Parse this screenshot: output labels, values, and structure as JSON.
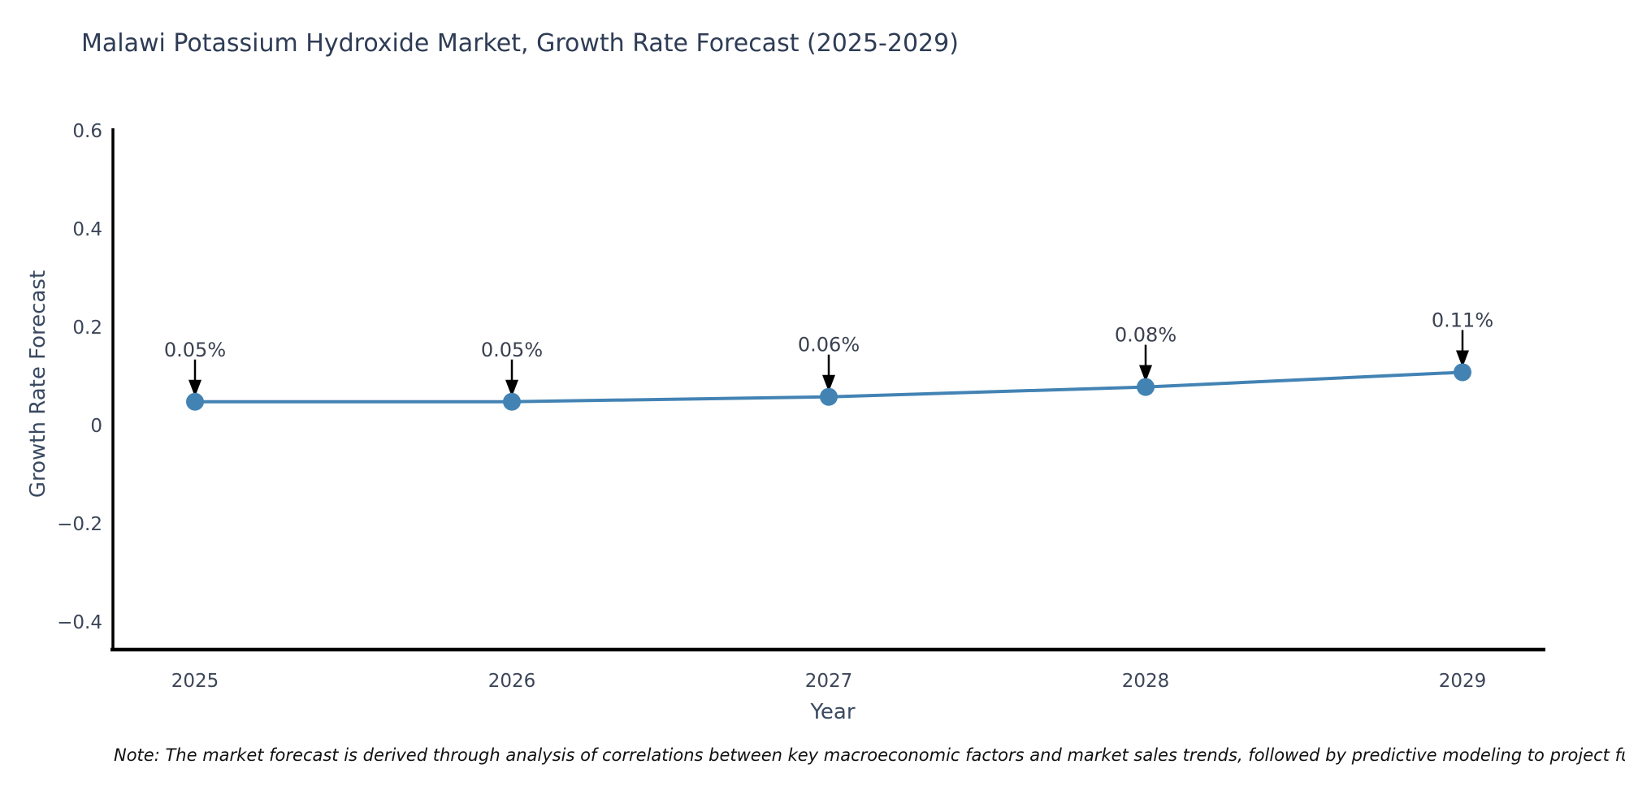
{
  "title": "Malawi Potassium Hydroxide Market, Growth Rate Forecast (2025-2029)",
  "footnote": "Note: The market forecast is derived through analysis of correlations between key macroeconomic factors and market sales trends, followed by predictive modeling to project future sales",
  "chart_data": {
    "type": "line",
    "title": "Malawi Potassium Hydroxide Market, Growth Rate Forecast (2025-2029)",
    "xlabel": "Year",
    "ylabel": "Growth Rate Forecast",
    "x": [
      2025,
      2026,
      2027,
      2028,
      2029
    ],
    "series": [
      {
        "name": "Growth Rate Forecast",
        "values": [
          0.05,
          0.05,
          0.06,
          0.08,
          0.11
        ]
      }
    ],
    "point_labels": [
      "0.05%",
      "0.05%",
      "0.06%",
      "0.08%",
      "0.11%"
    ],
    "xtick_labels": [
      "2025",
      "2026",
      "2027",
      "2028",
      "2029"
    ],
    "yticks": [
      0.6,
      0.4,
      0.2,
      0,
      -0.2,
      -0.4
    ],
    "ytick_labels": [
      "0.6",
      "0.4",
      "0.2",
      "0",
      "−0.2",
      "−0.4"
    ],
    "ylim": [
      -0.46,
      0.61
    ],
    "grid": false,
    "legend_position": "none",
    "colors": {
      "line": "#4383b4",
      "marker": "#4383b4",
      "spine": "#000000",
      "arrow": "#000000",
      "tick_text": "#3c4659",
      "annotation_text": "#3a4150"
    }
  }
}
